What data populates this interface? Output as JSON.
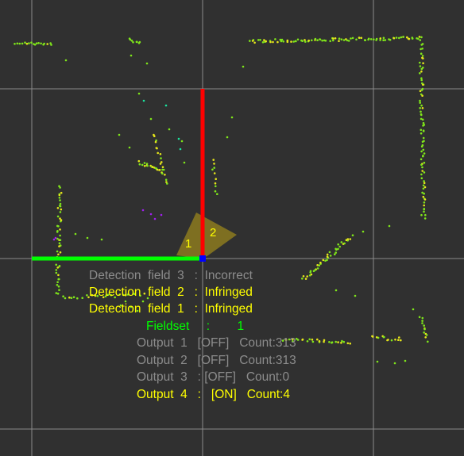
{
  "colors": {
    "background": "#303030",
    "grid": "#8a8a8a",
    "axis_x": "#ff0000",
    "axis_y": "#00ff00",
    "origin": "#0000ff",
    "field_fill": "#8c7a1e",
    "active": "#ffff00",
    "inactive": "#8c8c8c",
    "fieldset": "#00ff00",
    "points_primary": "#7fe61a",
    "points_secondary": "#e6e61a",
    "points_tertiary": "#1ae6a0",
    "points_purple": "#a020f0"
  },
  "zone_labels": {
    "zone1": "1",
    "zone2": "2"
  },
  "status": {
    "detection_field_3": "Detection  field  3   :  Incorrect",
    "detection_field_2": "Detection  field  2   :  Infringed",
    "detection_field_1": "Detection  field  1   :  Infringed",
    "fieldset": "Fieldset     :        1",
    "output_1": "Output  1   [OFF]   Count:313",
    "output_2": "Output  2   [OFF]   Count:313",
    "output_3": "Output  3   : [OFF]   Count:0",
    "output_4": "Output  4   :   [ON]   Count:4"
  }
}
